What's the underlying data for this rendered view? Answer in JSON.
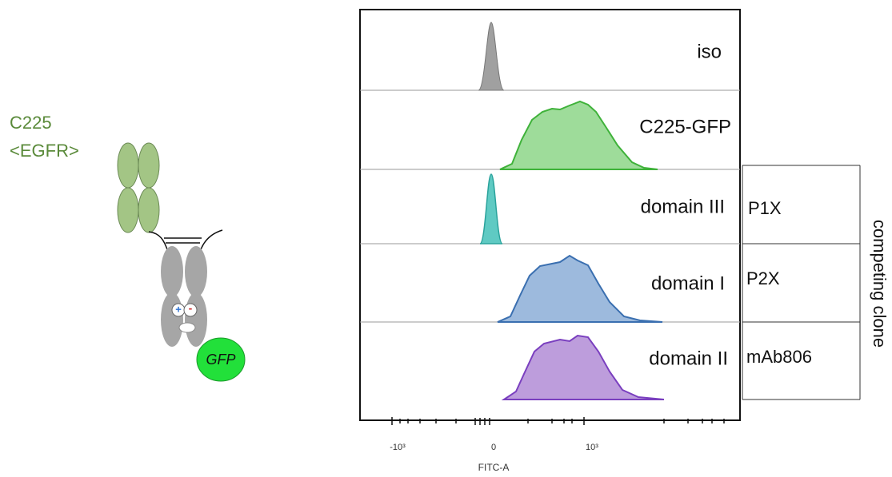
{
  "diagram": {
    "antibody": {
      "name": "C225",
      "target": "<EGFR>",
      "tag": "GFP",
      "plus": "+",
      "minus": "-"
    },
    "panels": [
      {
        "label": "iso"
      },
      {
        "label": "C225-GFP"
      },
      {
        "label": "domain III",
        "clone": "P1X"
      },
      {
        "label": "domain I",
        "clone": "P2X"
      },
      {
        "label": "domain II",
        "clone": "mAb806"
      }
    ],
    "bracket_label": "competing clone",
    "x_axis": {
      "label": "FITC-A",
      "ticks": [
        "-10³",
        "0",
        "10³"
      ]
    }
  }
}
